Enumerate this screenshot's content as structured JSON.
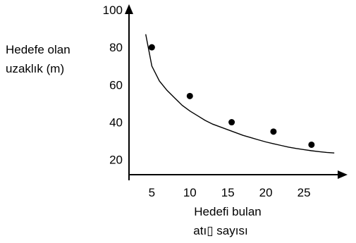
{
  "chart_data": {
    "type": "scatter",
    "title": "",
    "ylabel_lines": [
      "Hedefe olan",
      "uzaklık (m)"
    ],
    "xlabel_lines": [
      "Hedefi bulan",
      "atı▯ sayısı"
    ],
    "xlim": [
      2,
      30
    ],
    "ylim": [
      12,
      100
    ],
    "x_ticks": [
      5,
      10,
      15,
      20,
      25
    ],
    "y_ticks": [
      20,
      40,
      60,
      80,
      100
    ],
    "series": [
      {
        "x": [
          5,
          10,
          15.5,
          21,
          26
        ],
        "y": [
          80,
          54,
          40,
          35,
          28
        ]
      }
    ],
    "curve": {
      "x": [
        4.2,
        5,
        6,
        7,
        8,
        9,
        10,
        11,
        12,
        13,
        14,
        15,
        16,
        17,
        18,
        19,
        20,
        21,
        22,
        23,
        24,
        25,
        26,
        27,
        28,
        29
      ],
      "y": [
        87,
        70,
        62,
        57,
        53,
        49,
        46,
        43.5,
        41,
        39,
        37.5,
        36,
        34.5,
        33,
        31.8,
        30.6,
        29.5,
        28.5,
        27.6,
        26.7,
        26,
        25.4,
        24.8,
        24.3,
        23.9,
        23.6
      ]
    },
    "grid": false,
    "legend": "none"
  }
}
